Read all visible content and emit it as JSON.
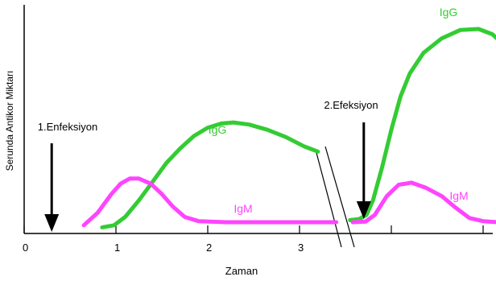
{
  "chart_data": {
    "type": "line",
    "xlabel": "Zaman",
    "ylabel": "Serunda Antikor Miktarı",
    "xlim": [
      0,
      5.0
    ],
    "ylim": [
      0,
      100
    ],
    "x_ticks": [
      {
        "value": 0,
        "label": "0"
      },
      {
        "value": 1,
        "label": "1"
      },
      {
        "value": 2,
        "label": "2"
      },
      {
        "value": 3,
        "label": "3"
      },
      {
        "value": 4,
        "label": ""
      },
      {
        "value": 5,
        "label": ""
      }
    ],
    "grid": false,
    "axis_break_x": 3.45,
    "colors": {
      "IgG": "#33cc33",
      "IgM": "#ff44ff",
      "axis": "#000000"
    },
    "series": [
      {
        "name": "IgG",
        "segment": 1,
        "points": [
          [
            0.85,
            1
          ],
          [
            0.98,
            2
          ],
          [
            1.1,
            6
          ],
          [
            1.25,
            14
          ],
          [
            1.4,
            23
          ],
          [
            1.55,
            32
          ],
          [
            1.7,
            39
          ],
          [
            1.85,
            45
          ],
          [
            2.0,
            49
          ],
          [
            2.15,
            51
          ],
          [
            2.28,
            51.5
          ],
          [
            2.45,
            50.5
          ],
          [
            2.65,
            48
          ],
          [
            2.85,
            44.5
          ],
          [
            3.05,
            40
          ],
          [
            3.2,
            37.5
          ]
        ]
      },
      {
        "name": "IgM",
        "segment": 1,
        "points": [
          [
            0.65,
            2
          ],
          [
            0.8,
            8
          ],
          [
            0.95,
            17
          ],
          [
            1.05,
            22
          ],
          [
            1.15,
            24.5
          ],
          [
            1.25,
            24.5
          ],
          [
            1.38,
            22
          ],
          [
            1.5,
            17
          ],
          [
            1.62,
            11
          ],
          [
            1.75,
            6
          ],
          [
            1.9,
            4
          ],
          [
            2.2,
            3.5
          ],
          [
            2.6,
            3.5
          ],
          [
            3.0,
            3.5
          ],
          [
            3.4,
            3.5
          ]
        ]
      },
      {
        "name": "IgG",
        "segment": 2,
        "points": [
          [
            3.55,
            4.5
          ],
          [
            3.65,
            5
          ],
          [
            3.73,
            7
          ],
          [
            3.8,
            14
          ],
          [
            3.9,
            30
          ],
          [
            4.0,
            48
          ],
          [
            4.1,
            64
          ],
          [
            4.2,
            75
          ],
          [
            4.35,
            85
          ],
          [
            4.55,
            92
          ],
          [
            4.75,
            96
          ],
          [
            4.95,
            96.5
          ],
          [
            5.1,
            94
          ],
          [
            5.2,
            90
          ]
        ]
      },
      {
        "name": "IgM",
        "segment": 2,
        "points": [
          [
            3.58,
            3.5
          ],
          [
            3.72,
            3.8
          ],
          [
            3.82,
            7
          ],
          [
            3.95,
            16
          ],
          [
            4.08,
            21.5
          ],
          [
            4.22,
            22.5
          ],
          [
            4.38,
            20
          ],
          [
            4.55,
            16
          ],
          [
            4.7,
            10.5
          ],
          [
            4.85,
            5.5
          ],
          [
            5.0,
            4
          ],
          [
            5.15,
            3.5
          ],
          [
            5.22,
            3.5
          ]
        ]
      }
    ],
    "annotations": [
      {
        "text": "1.Enfeksiyon",
        "x": 0.3,
        "arrow": true
      },
      {
        "text": "2.Efeksiyon",
        "x": 3.7,
        "arrow": true
      },
      {
        "text": "IgG",
        "series": "IgG",
        "segment": 1
      },
      {
        "text": "IgM",
        "series": "IgM",
        "segment": 1
      },
      {
        "text": "IgG",
        "series": "IgG",
        "segment": 2
      },
      {
        "text": "IgM",
        "series": "IgM",
        "segment": 2
      }
    ]
  }
}
